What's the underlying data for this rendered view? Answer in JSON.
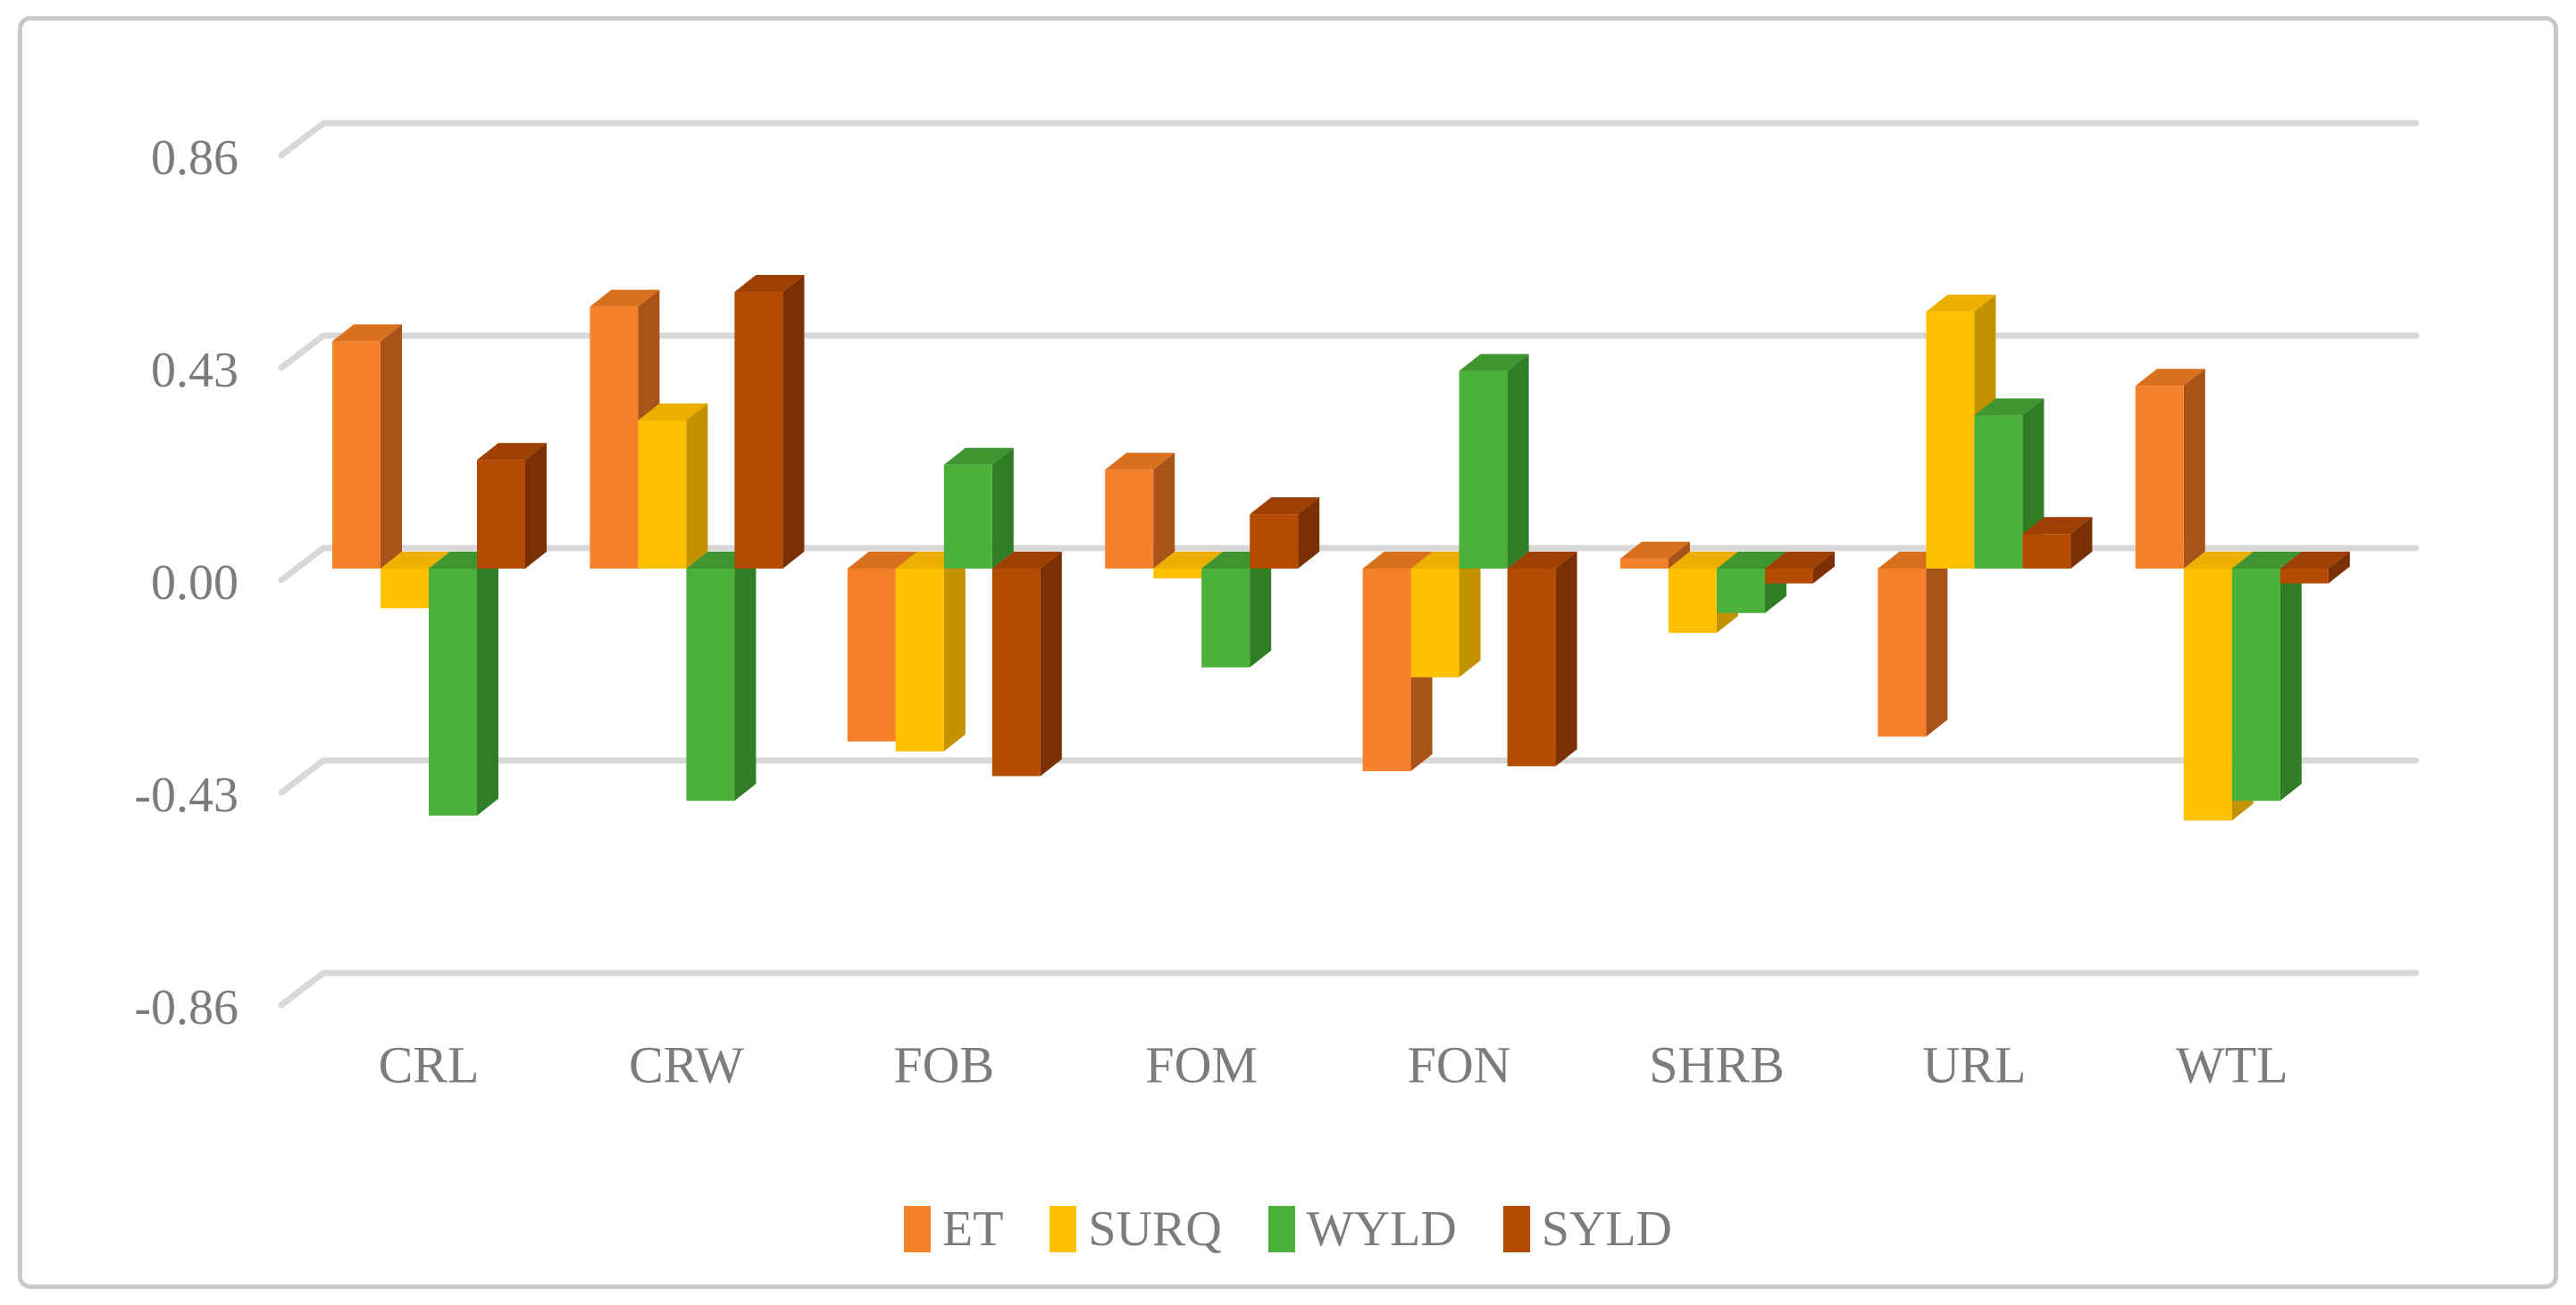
{
  "chart_data": {
    "type": "bar",
    "variant": "3d-clustered-column",
    "title": "",
    "xlabel": "",
    "ylabel": "",
    "categories": [
      "CRL",
      "CRW",
      "FOB",
      "FOM",
      "FON",
      "SHRB",
      "URL",
      "WTL"
    ],
    "series": [
      {
        "name": "ET",
        "color": "#F5812C",
        "color_top": "#D9701E",
        "color_side": "#AA5318",
        "values": [
          0.46,
          0.53,
          -0.35,
          0.2,
          -0.41,
          0.02,
          -0.34,
          0.37
        ]
      },
      {
        "name": "SURQ",
        "color": "#FFC000",
        "color_top": "#EBB000",
        "color_side": "#C29200",
        "values": [
          -0.08,
          0.3,
          -0.37,
          -0.02,
          -0.22,
          -0.13,
          0.52,
          -0.51
        ]
      },
      {
        "name": "WYLD",
        "color": "#4CB13B",
        "color_top": "#3F9630",
        "color_side": "#2F7D24",
        "values": [
          -0.5,
          -0.47,
          0.21,
          -0.2,
          0.4,
          -0.09,
          0.31,
          -0.47
        ]
      },
      {
        "name": "SYLD",
        "color": "#B54A02",
        "color_top": "#9E4003",
        "color_side": "#7A3002",
        "values": [
          0.22,
          0.56,
          -0.42,
          0.11,
          -0.4,
          -0.03,
          0.07,
          -0.03
        ]
      }
    ],
    "y_ticks": [
      "0.86",
      "0.43",
      "0.00",
      "-0.43",
      "-0.86"
    ],
    "y_tick_values": [
      0.86,
      0.43,
      0.0,
      -0.43,
      -0.86
    ],
    "ylim": [
      -0.86,
      0.86
    ],
    "grid": true,
    "legend_position": "bottom",
    "text_color": "#7C7C7C",
    "gridline_color": "#D8D8D8"
  }
}
